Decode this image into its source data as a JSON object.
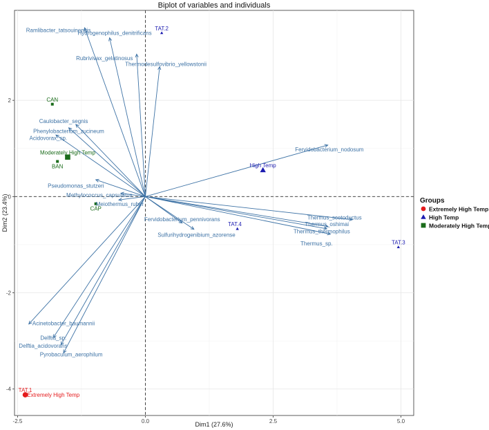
{
  "chart_data": {
    "type": "scatter",
    "title": "Biplot of variables and individuals",
    "xlabel": "Dim1 (27.6%)",
    "ylabel": "Dim2 (23.4%)",
    "xlim": [
      -2.56,
      5.25
    ],
    "ylim": [
      -4.55,
      3.87
    ],
    "grid": true,
    "x_ticks": [
      {
        "value": -2.5,
        "label": "-2.5"
      },
      {
        "value": 0.0,
        "label": "0.0"
      },
      {
        "value": 2.5,
        "label": "2.5"
      },
      {
        "value": 5.0,
        "label": "5.0"
      }
    ],
    "y_ticks": [
      {
        "value": -4,
        "label": "-4"
      },
      {
        "value": -2,
        "label": "-2"
      },
      {
        "value": 0,
        "label": "0"
      },
      {
        "value": 2,
        "label": "2"
      }
    ],
    "legend": {
      "title": "Groups",
      "placement": "right",
      "items": [
        {
          "label": "Extremely High Temp",
          "color": "#e41a1c",
          "shape": "circle"
        },
        {
          "label": "High Temp",
          "color": "#1c1cb0",
          "shape": "triangle"
        },
        {
          "label": "Moderately High Temp",
          "color": "#1a6b1a",
          "shape": "square"
        }
      ]
    },
    "variable_color": "#3d72a5",
    "variables": [
      {
        "name": "Ramlibacter_tatsouinensis",
        "x": -1.19,
        "y": 3.51,
        "lx": -1.7,
        "ly": 3.46
      },
      {
        "name": "Hydrogenophilus_denitrificans",
        "x": -0.7,
        "y": 3.3,
        "lx": -0.6,
        "ly": 3.4
      },
      {
        "name": "Rubrivivax_gelatinosus",
        "x": -0.17,
        "y": 2.96,
        "lx": -0.8,
        "ly": 2.88
      },
      {
        "name": "Thermodesulfovibrio_yellowstonii",
        "x": 0.28,
        "y": 2.7,
        "lx": 0.4,
        "ly": 2.76
      },
      {
        "name": "Caulobacter_segnis",
        "x": -1.36,
        "y": 1.5,
        "lx": -1.6,
        "ly": 1.57
      },
      {
        "name": "Phenylobacterium_zucineum",
        "x": -1.5,
        "y": 1.43,
        "lx": -1.5,
        "ly": 1.36
      },
      {
        "name": "Acidovorax_sp.",
        "x": -1.75,
        "y": 1.28,
        "lx": -1.9,
        "ly": 1.22
      },
      {
        "name": "Pseudomonas_stutzeri",
        "x": -0.97,
        "y": 0.35,
        "lx": -1.36,
        "ly": 0.23
      },
      {
        "name": "Methylococcus_capsulatus",
        "x": -0.48,
        "y": 0.07,
        "lx": -0.9,
        "ly": 0.03
      },
      {
        "name": "Meiothermus_ruber",
        "x": -0.52,
        "y": -0.07,
        "lx": -0.5,
        "ly": -0.15
      },
      {
        "name": "Fervidobacterium_nodosum",
        "x": 3.57,
        "y": 1.07,
        "lx": 3.6,
        "ly": 0.98
      },
      {
        "name": "Thermus_scotoductus",
        "x": 4.05,
        "y": -0.48,
        "lx": 3.7,
        "ly": -0.43
      },
      {
        "name": "Thermus_oshimai",
        "x": 3.57,
        "y": -0.62,
        "lx": 3.55,
        "ly": -0.57
      },
      {
        "name": "Thermus_thermophilus",
        "x": 3.55,
        "y": -0.67,
        "lx": 3.45,
        "ly": -0.72
      },
      {
        "name": "Thermus_sp.",
        "x": 3.62,
        "y": -0.78,
        "lx": 3.35,
        "ly": -0.97
      },
      {
        "name": "Fervidobacterium_pennivorans",
        "x": 0.72,
        "y": -0.55,
        "lx": 0.72,
        "ly": -0.47
      },
      {
        "name": "Sulfurihydrogenibium_azorense",
        "x": 0.95,
        "y": -0.68,
        "lx": 1.0,
        "ly": -0.79
      },
      {
        "name": "Acinetobacter_baumannii",
        "x": -2.28,
        "y": -2.65,
        "lx": -1.6,
        "ly": -2.63
      },
      {
        "name": "Delftia_sp.",
        "x": -1.8,
        "y": -2.93,
        "lx": -1.8,
        "ly": -2.93
      },
      {
        "name": "Delftia_acidovorans",
        "x": -1.65,
        "y": -3.08,
        "lx": -2.0,
        "ly": -3.1
      },
      {
        "name": "Pyrobaculum_aerophilum",
        "x": -1.6,
        "y": -3.25,
        "lx": -1.45,
        "ly": -3.28
      }
    ],
    "individuals": [
      {
        "name": "TAT.2",
        "x": 0.32,
        "y": 3.4,
        "group": "High Temp",
        "lx": 0.32,
        "ly": 3.5
      },
      {
        "name": "TAT.3",
        "x": 4.95,
        "y": -1.05,
        "group": "High Temp",
        "lx": 4.95,
        "ly": -0.95
      },
      {
        "name": "TAT.4",
        "x": 1.8,
        "y": -0.67,
        "group": "High Temp",
        "lx": 1.75,
        "ly": -0.57
      },
      {
        "name": "TAT.1",
        "x": -2.35,
        "y": -4.12,
        "group": "Extremely High Temp",
        "lx": -2.35,
        "ly": -4.02
      },
      {
        "name": "CAN",
        "x": -1.82,
        "y": 1.92,
        "group": "Moderately High Temp",
        "lx": -1.82,
        "ly": 2.02
      },
      {
        "name": "BAN",
        "x": -1.72,
        "y": 0.73,
        "group": "Moderately High Temp",
        "lx": -1.72,
        "ly": 0.63
      },
      {
        "name": "CAP",
        "x": -0.97,
        "y": -0.15,
        "group": "Moderately High Temp",
        "lx": -0.97,
        "ly": -0.25
      }
    ],
    "group_centers": [
      {
        "name": "High Temp",
        "x": 2.3,
        "y": 0.55,
        "group": "High Temp",
        "lx": 2.3,
        "ly": 0.65
      },
      {
        "name": "Extremely High Temp",
        "x": -2.35,
        "y": -4.12,
        "group": "Extremely High Temp",
        "lx": -1.8,
        "ly": -4.12
      },
      {
        "name": "Moderately High Temp",
        "x": -1.52,
        "y": 0.82,
        "group": "Moderately High Temp",
        "lx": -1.52,
        "ly": 0.92
      }
    ]
  }
}
